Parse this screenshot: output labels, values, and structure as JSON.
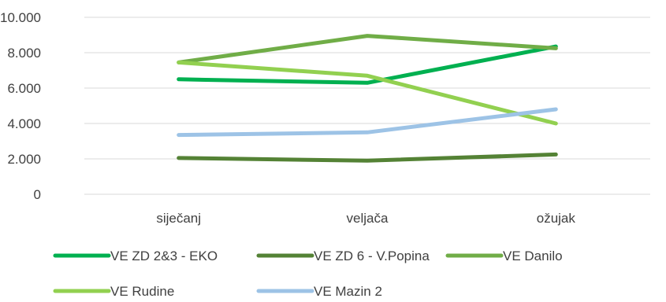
{
  "chart_data": {
    "type": "line",
    "title": "",
    "xlabel": "",
    "ylabel": "",
    "categories": [
      "siječanj",
      "veljača",
      "ožujak"
    ],
    "ylim": [
      0,
      10000
    ],
    "yticks": [
      0,
      2000,
      4000,
      6000,
      8000,
      10000
    ],
    "ytick_labels": [
      "0",
      "2.000",
      "4.000",
      "6.000",
      "8.000",
      "10.000"
    ],
    "grid": true,
    "legend_position": "bottom",
    "series": [
      {
        "name": "VE ZD 2&3 - EKO",
        "color": "#00b050",
        "values": [
          6500,
          6300,
          8350
        ]
      },
      {
        "name": "VE ZD 6 - V.Popina",
        "color": "#548235",
        "values": [
          2050,
          1900,
          2250
        ]
      },
      {
        "name": "VE Danilo",
        "color": "#70ad47",
        "values": [
          7450,
          8950,
          8250
        ]
      },
      {
        "name": "VE Rudine",
        "color": "#92d050",
        "values": [
          7450,
          6700,
          4000
        ]
      },
      {
        "name": "VE Mazin 2",
        "color": "#9dc3e6",
        "values": [
          3350,
          3500,
          4800
        ]
      }
    ]
  }
}
